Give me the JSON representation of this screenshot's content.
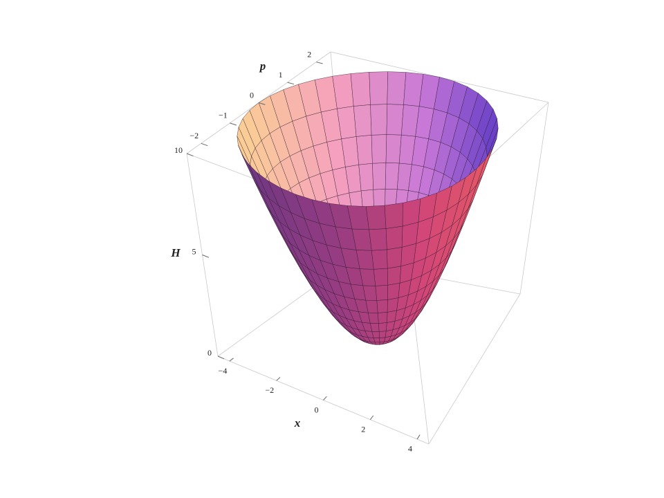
{
  "chart_data": {
    "type": "surface3d",
    "xlabel": "x",
    "ylabel": "p",
    "zlabel": "H",
    "xlim": [
      -4.5,
      4.5
    ],
    "ylim": [
      -2.5,
      2.5
    ],
    "zlim": [
      0,
      10
    ],
    "xticks": [
      {
        "value": -4,
        "label": "−4"
      },
      {
        "value": -2,
        "label": "−2"
      },
      0,
      2,
      4
    ],
    "yticks": [
      {
        "value": -2,
        "label": "−2"
      },
      {
        "value": -1,
        "label": "−1"
      },
      0,
      1,
      2
    ],
    "zticks": [
      0,
      5,
      10
    ]
  }
}
